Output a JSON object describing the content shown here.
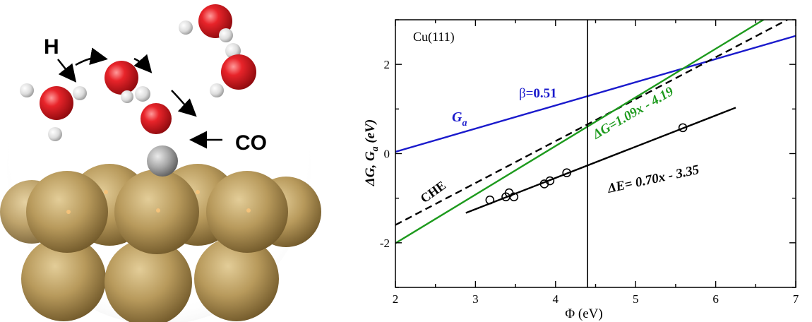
{
  "illustration": {
    "labels": {
      "hydrogen": "H",
      "carbon_monoxide": "CO"
    },
    "colors": {
      "oxygen": "#d8141b",
      "hydrogen": "#e0e0e0",
      "carbon": "#9a9a9a",
      "copper": "#b89a5c"
    }
  },
  "chart_data": {
    "type": "line",
    "panel_label": "Cu(111)",
    "xlabel": "Φ (eV)",
    "ylabel": "ΔG, G_a (eV)",
    "xlim": [
      2,
      7
    ],
    "ylim": [
      -3,
      3
    ],
    "xticks": [
      2,
      3,
      4,
      5,
      6,
      7
    ],
    "yticks": [
      -2,
      0,
      2
    ],
    "vline_x": 4.4,
    "series": [
      {
        "name": "G_a",
        "color": "#1a1acc",
        "style": "solid",
        "x": [
          2.0,
          7.0
        ],
        "y": [
          0.04,
          2.64
        ]
      },
      {
        "name": "CHE",
        "color": "#000000",
        "style": "dashed",
        "x": [
          2.0,
          7.0
        ],
        "y": [
          -1.6,
          3.1
        ]
      },
      {
        "name": "ΔG=1.09x - 4.19",
        "color": "#1d9a1d",
        "style": "solid",
        "x": [
          2.0,
          7.0
        ],
        "y": [
          -2.01,
          3.44
        ]
      },
      {
        "name": "ΔE= 0.70x - 3.35",
        "color": "#000000",
        "style": "solid",
        "x": [
          2.88,
          6.25
        ],
        "y": [
          -1.33,
          1.03
        ]
      }
    ],
    "points": {
      "x": [
        3.18,
        3.38,
        3.42,
        3.48,
        3.86,
        3.93,
        4.14,
        5.59
      ],
      "y": [
        -1.04,
        -0.97,
        -0.88,
        -0.97,
        -0.68,
        -0.61,
        -0.43,
        0.58
      ]
    },
    "annotations": {
      "beta_symbol": "β=",
      "beta_value": "0.51",
      "ga_main": "G",
      "ga_sub": "a",
      "che": "CHE",
      "dg_eq": "ΔG=1.09x - 4.19",
      "de_eq": "ΔE= 0.70x - 3.35"
    },
    "ylabel_parts": {
      "a": "ΔG, G",
      "sub": "a",
      "b": " (eV)"
    }
  }
}
